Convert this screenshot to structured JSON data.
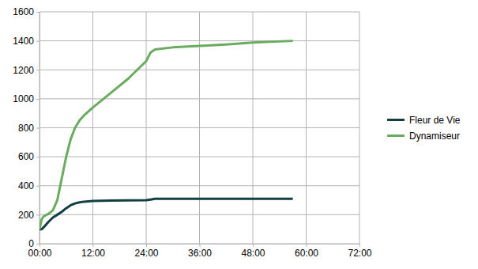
{
  "chart_data": {
    "type": "line",
    "x": [
      0,
      0.5,
      1,
      2,
      3,
      4,
      5,
      6,
      7,
      8,
      9,
      10,
      12,
      16,
      20,
      24,
      25,
      26,
      30,
      36,
      42,
      48,
      57
    ],
    "series": [
      {
        "name": "Fleur de Vie",
        "color": "#123f40",
        "values": [
          100,
          100,
          115,
          150,
          180,
          200,
          220,
          245,
          265,
          278,
          285,
          290,
          295,
          298,
          299,
          300,
          305,
          310,
          310,
          310,
          310,
          310,
          310
        ]
      },
      {
        "name": "Dynamiseur",
        "color": "#6aac5f",
        "values": [
          100,
          170,
          190,
          205,
          230,
          300,
          450,
          600,
          720,
          800,
          850,
          885,
          940,
          1040,
          1140,
          1260,
          1320,
          1340,
          1355,
          1365,
          1375,
          1388,
          1400
        ]
      }
    ],
    "xlim": [
      0,
      72
    ],
    "xticks": [
      {
        "value": 0,
        "label": "00:00"
      },
      {
        "value": 12,
        "label": "12:00"
      },
      {
        "value": 24,
        "label": "24:00"
      },
      {
        "value": 36,
        "label": "36:00"
      },
      {
        "value": 48,
        "label": "48:00"
      },
      {
        "value": 60,
        "label": "60:00"
      },
      {
        "value": 72,
        "label": "72:00"
      }
    ],
    "ylim": [
      0,
      1600
    ],
    "yticks": [
      0,
      200,
      400,
      600,
      800,
      1000,
      1200,
      1400,
      1600
    ],
    "grid": true,
    "legend": "right"
  }
}
